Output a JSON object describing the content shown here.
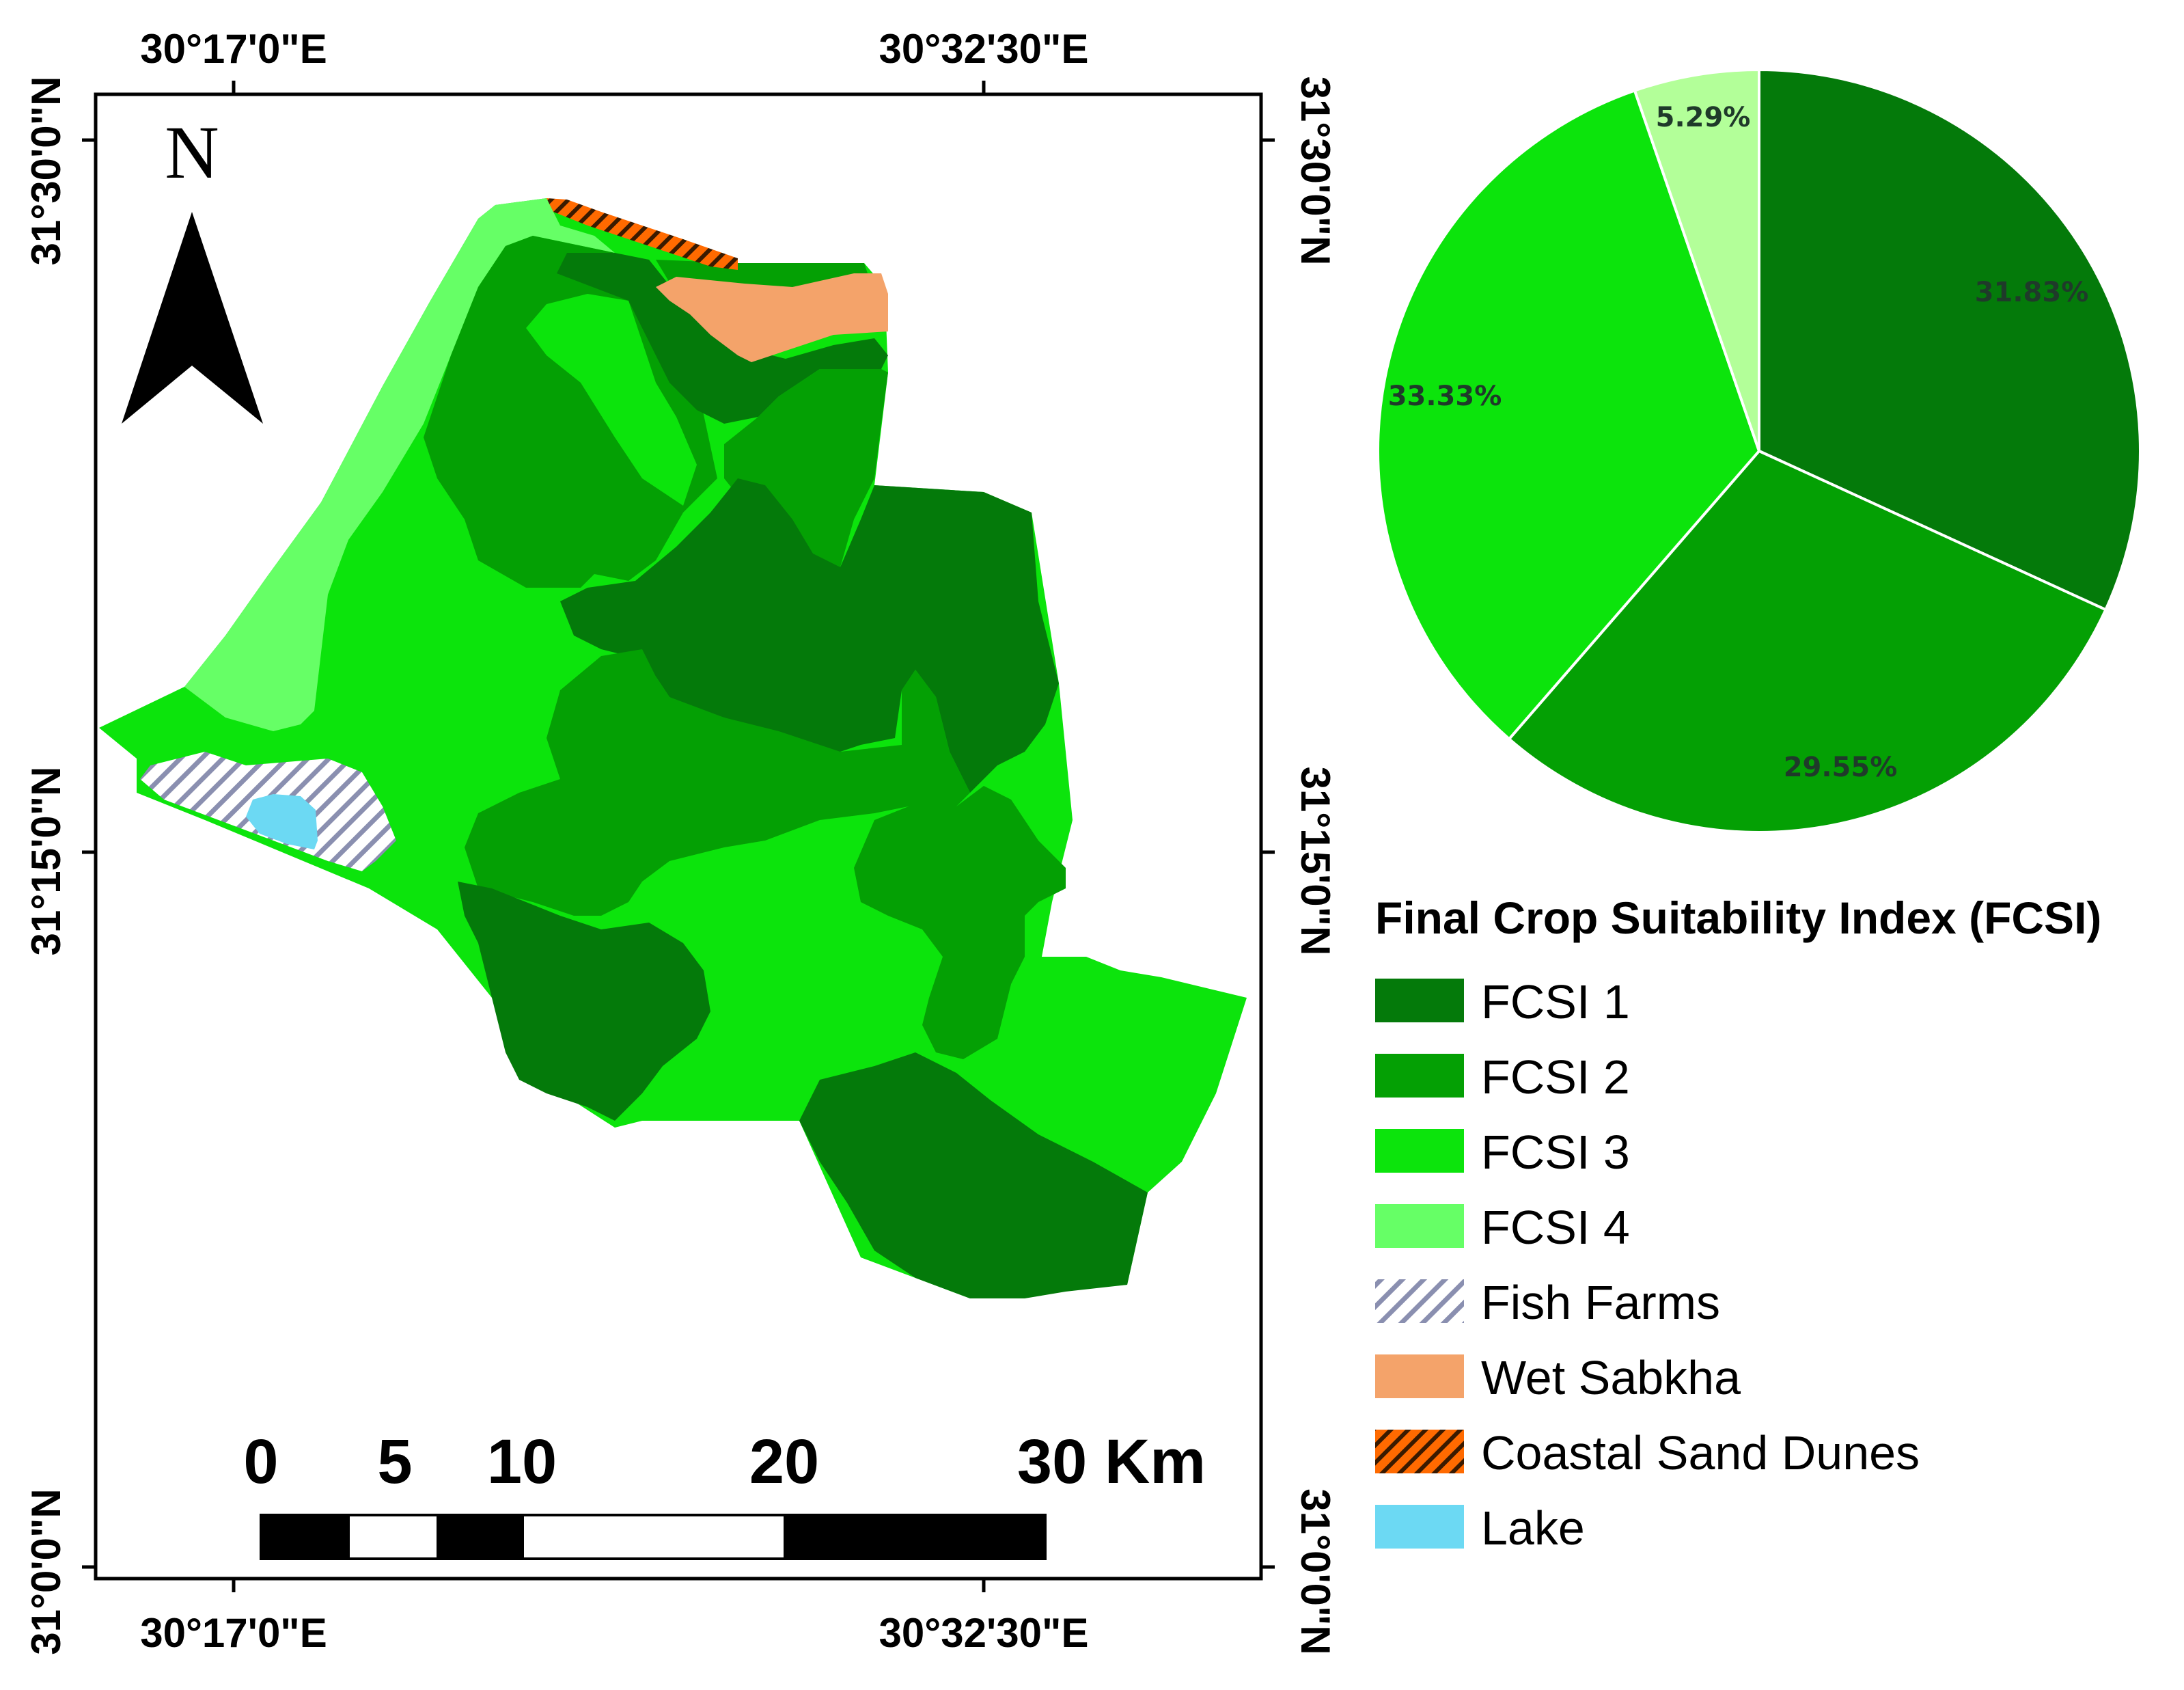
{
  "map": {
    "north_label": "N",
    "top_lon_labels": [
      "30°17'0\"E",
      "30°32'30\"E"
    ],
    "bottom_lon_labels": [
      "30°17'0\"E",
      "30°32'30\"E"
    ],
    "left_lat_labels": [
      "31°30'0\"N",
      "31°15'0\"N",
      "31°0'0\"N"
    ],
    "right_lat_labels": [
      "31°30'0\"N",
      "31°15'0\"N",
      "31°0'0\"N"
    ],
    "scale_labels": [
      "0",
      "5",
      "10",
      "20",
      "30 Km"
    ],
    "colors": {
      "fcsi1": "#047a0a",
      "fcsi2": "#04a004",
      "fcsi3": "#0ce40c",
      "fcsi4": "#66ff66",
      "fish_farms_line": "#8a8fb0",
      "wet_sabkha": "#f4a36a",
      "dunes_hatch": "#ff6a00",
      "lake": "#6cd9f3"
    }
  },
  "chart_data": {
    "type": "pie",
    "categories": [
      "FCSI 1",
      "FCSI 2",
      "FCSI 3",
      "FCSI 4"
    ],
    "values": [
      31.83,
      29.55,
      33.33,
      5.29
    ],
    "labels": [
      "31.83%",
      "29.55%",
      "33.33%",
      "5.29%"
    ],
    "colors": [
      "#047a0a",
      "#04a004",
      "#0ce40c",
      "#b3ff99"
    ],
    "start": "12 o'clock",
    "direction": "clockwise"
  },
  "legend": {
    "title": "Final Crop Suitability Index (FCSI)",
    "items": [
      {
        "label": "FCSI 1",
        "color": "#047a0a",
        "pattern": "solid"
      },
      {
        "label": "FCSI 2",
        "color": "#04a004",
        "pattern": "solid"
      },
      {
        "label": "FCSI 3",
        "color": "#0ce40c",
        "pattern": "solid"
      },
      {
        "label": "FCSI 4",
        "color": "#66ff66",
        "pattern": "solid"
      },
      {
        "label": "Fish Farms",
        "color": "#8a8fb0",
        "pattern": "diagonal-lines"
      },
      {
        "label": "Wet Sabkha",
        "color": "#f4a36a",
        "pattern": "solid"
      },
      {
        "label": "Coastal Sand Dunes",
        "color": "#ff6a00",
        "pattern": "hatch"
      },
      {
        "label": "Lake",
        "color": "#6cd9f3",
        "pattern": "solid"
      }
    ]
  }
}
